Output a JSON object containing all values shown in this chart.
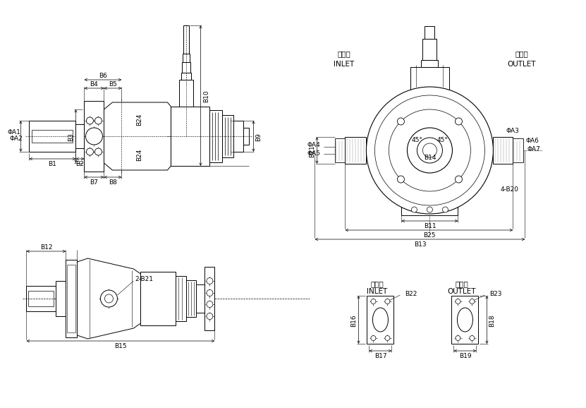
{
  "bg_color": "#ffffff",
  "line_color": "#000000",
  "labels": {
    "B1": "B1",
    "B2": "B2",
    "B3": "B3",
    "B4": "B4",
    "B5": "B5",
    "B6": "B6",
    "B7": "B7",
    "B8": "B8",
    "B9": "B9",
    "B10": "B10",
    "B11": "B11",
    "B12": "B12",
    "B13": "B13",
    "B14": "B14",
    "B15": "B15",
    "B16": "B16",
    "B17": "B17",
    "B18": "B18",
    "B19": "B19",
    "B20": "4-B20",
    "B21": "2-B21",
    "B22": "B22",
    "B23": "B23",
    "B24": "B24",
    "B25": "B25",
    "A1": "ΦA1",
    "A2": "ΦA2",
    "A3": "ΦA3",
    "A4": "ΦA4",
    "A5": "ΦA5",
    "A6": "ΦA6",
    "A7": "ΦA7",
    "inlet_cn": "进油口",
    "inlet_en": "INLET",
    "outlet_cn": "出油口",
    "outlet_en": "OUTLET",
    "angle1": "45°",
    "angle2": "45°"
  },
  "font_size": 7,
  "font_size_small": 6.5,
  "font_size_medium": 7.5
}
